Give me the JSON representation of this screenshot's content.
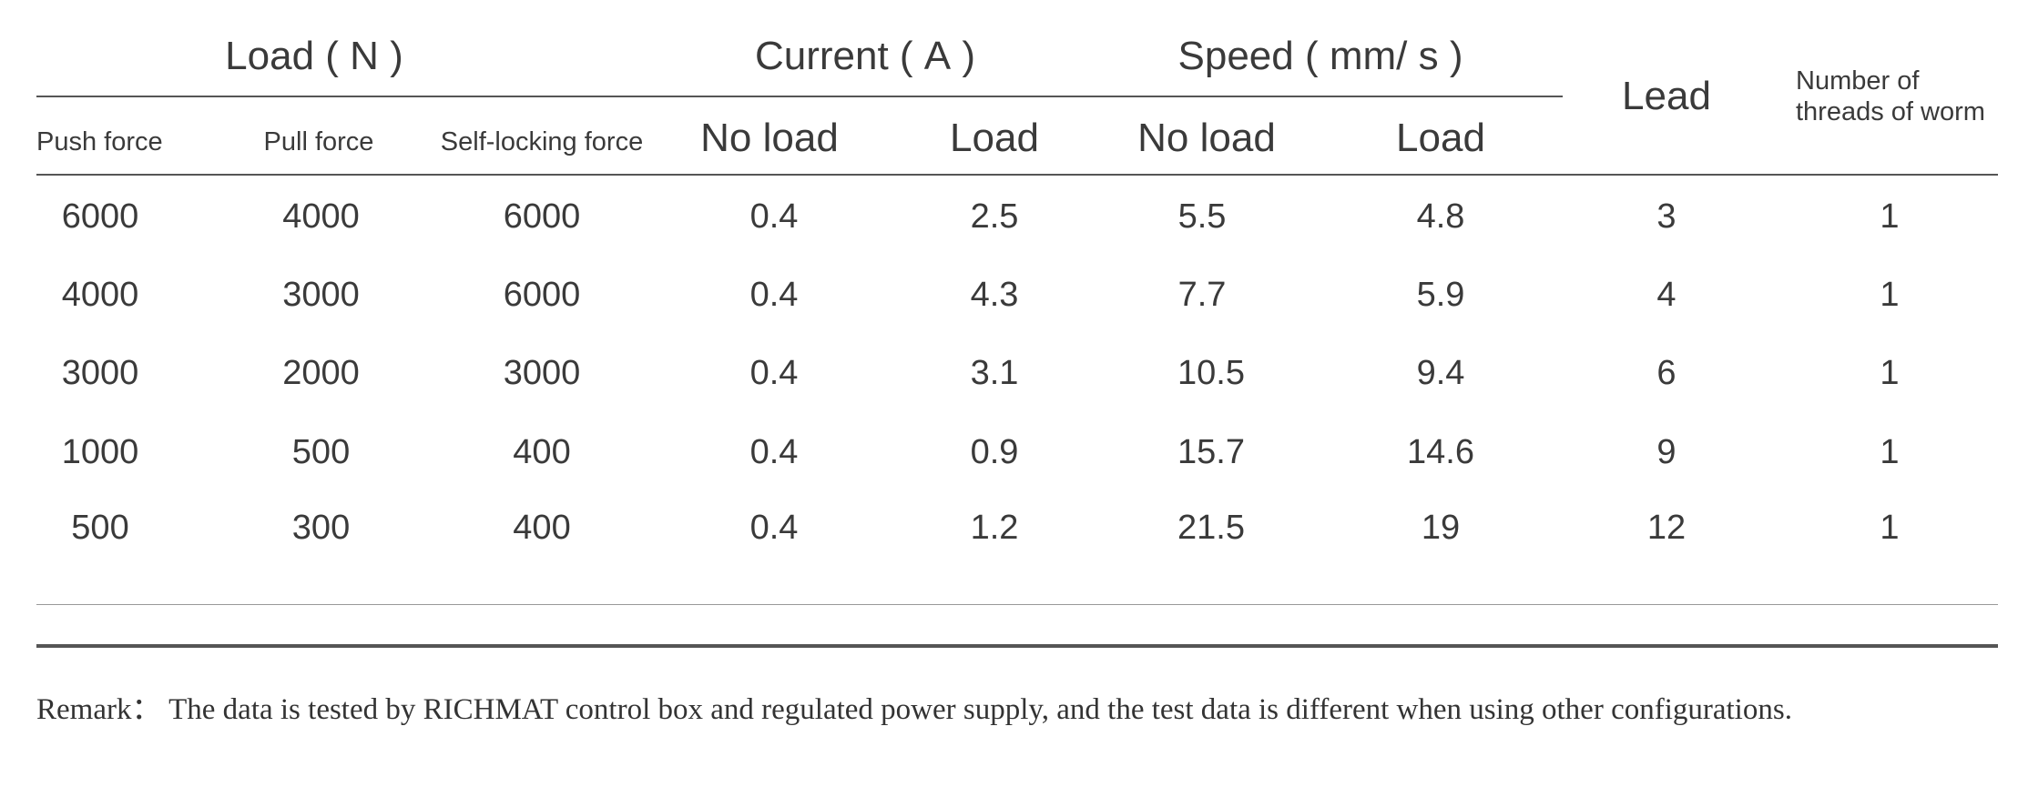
{
  "header": {
    "group_load": "Load ( N )",
    "group_current": "Current ( A )",
    "group_speed": "Speed ( mm/ s )",
    "lead": "Lead",
    "threads_line1": "Number of",
    "threads_line2": "threads of worm",
    "push_force": "Push force",
    "pull_force": "Pull force",
    "self_locking_force": "Self-locking force",
    "current_no_load": "No load",
    "current_load": "Load",
    "speed_no_load": "No load",
    "speed_load": "Load"
  },
  "rows": [
    {
      "push": "6000",
      "pull": "4000",
      "self_lock": "6000",
      "cur_noload": "0.4",
      "cur_load": "2.5",
      "spd_noload": "5.5",
      "spd_load": "4.8",
      "lead": "3",
      "threads": "1"
    },
    {
      "push": "4000",
      "pull": "3000",
      "self_lock": "6000",
      "cur_noload": "0.4",
      "cur_load": "4.3",
      "spd_noload": "7.7",
      "spd_load": "5.9",
      "lead": "4",
      "threads": "1"
    },
    {
      "push": "3000",
      "pull": "2000",
      "self_lock": "3000",
      "cur_noload": "0.4",
      "cur_load": "3.1",
      "spd_noload": "10.5",
      "spd_load": "9.4",
      "lead": "6",
      "threads": "1"
    },
    {
      "push": "1000",
      "pull": "500",
      "self_lock": "400",
      "cur_noload": "0.4",
      "cur_load": "0.9",
      "spd_noload": "15.7",
      "spd_load": "14.6",
      "lead": "9",
      "threads": "1"
    },
    {
      "push": "500",
      "pull": "300",
      "self_lock": "400",
      "cur_noload": "0.4",
      "cur_load": "1.2",
      "spd_noload": "21.5",
      "spd_load": "19",
      "lead": "12",
      "threads": "1"
    }
  ],
  "remark": "Remark： The data is tested by RICHMAT control box and regulated power supply, and the test data is different when using other configurations."
}
